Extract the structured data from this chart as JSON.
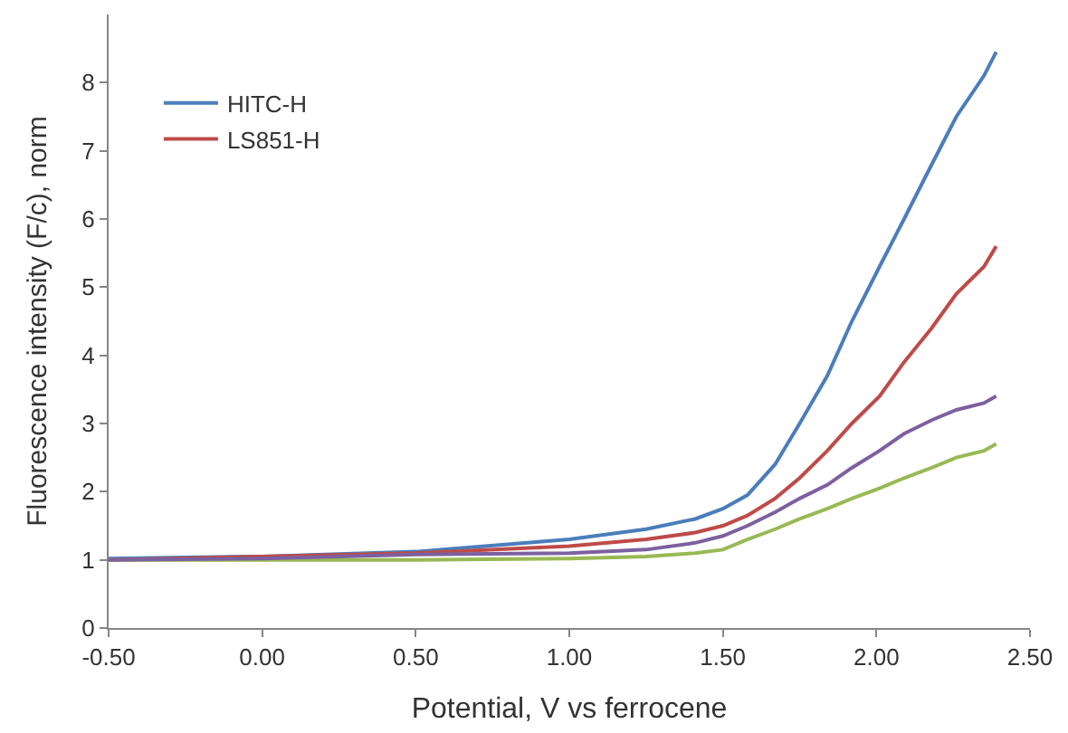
{
  "chart_data": {
    "type": "line",
    "xlabel": "Potential, V vs ferrocene",
    "ylabel": "Fluorescence intensity (F/c), norm",
    "xlim": [
      -0.5,
      2.5
    ],
    "xticks": [
      {
        "value": -0.5,
        "label": "-0.50"
      },
      {
        "value": 0,
        "label": "0.00"
      },
      {
        "value": 0.5,
        "label": "0.50"
      },
      {
        "value": 1,
        "label": "1.00"
      },
      {
        "value": 1.5,
        "label": "1.50"
      },
      {
        "value": 2,
        "label": "2.00"
      },
      {
        "value": 2.5,
        "label": "2.50"
      }
    ],
    "ylim": [
      0,
      9
    ],
    "yticks": [
      0,
      1,
      2,
      3,
      4,
      5,
      6,
      7,
      8
    ],
    "x": [
      -0.5,
      0,
      0.5,
      1.0,
      1.25,
      1.41,
      1.5,
      1.58,
      1.67,
      1.75,
      1.84,
      1.92,
      2.01,
      2.09,
      2.18,
      2.26,
      2.35,
      2.39
    ],
    "series": [
      {
        "name": "HITC-H",
        "color": "#4a7ebb",
        "values": [
          1.02,
          1.05,
          1.12,
          1.3,
          1.45,
          1.6,
          1.75,
          1.95,
          2.4,
          3.0,
          3.7,
          4.5,
          5.3,
          6.0,
          6.8,
          7.5,
          8.1,
          8.45
        ]
      },
      {
        "name": "LS851-H",
        "color": "#be4b48",
        "values": [
          1.0,
          1.05,
          1.1,
          1.2,
          1.3,
          1.4,
          1.5,
          1.65,
          1.9,
          2.2,
          2.6,
          3.0,
          3.4,
          3.9,
          4.4,
          4.9,
          5.3,
          5.6
        ]
      },
      {
        "color": "#98b954",
        "values": [
          1.0,
          1.0,
          1.0,
          1.02,
          1.05,
          1.1,
          1.15,
          1.3,
          1.45,
          1.6,
          1.75,
          1.9,
          2.05,
          2.2,
          2.35,
          2.5,
          2.6,
          2.7
        ]
      },
      {
        "color": "#7d60a0",
        "values": [
          1.0,
          1.02,
          1.08,
          1.1,
          1.15,
          1.25,
          1.35,
          1.5,
          1.7,
          1.9,
          2.1,
          2.35,
          2.6,
          2.85,
          3.05,
          3.2,
          3.3,
          3.4
        ]
      }
    ],
    "legend": "top left",
    "marker": "none",
    "line_style": "solid"
  }
}
